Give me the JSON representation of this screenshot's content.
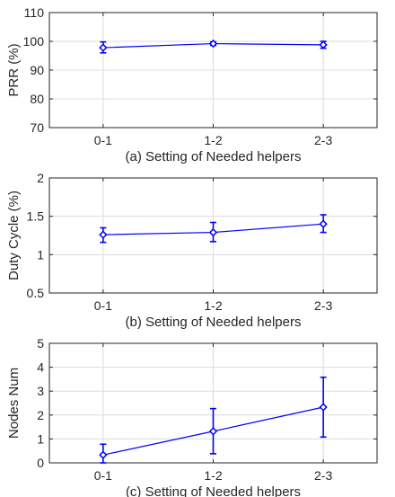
{
  "chart_data": [
    {
      "type": "line",
      "title": "",
      "xlabel": "(a) Setting of Needed helpers",
      "ylabel": "PRR (%)",
      "categories": [
        "0-1",
        "1-2",
        "2-3"
      ],
      "ylim": [
        70,
        110
      ],
      "yticks": [
        70,
        80,
        90,
        100,
        110
      ],
      "grid": true,
      "color": "#0000ff",
      "marker": "diamond",
      "series": [
        {
          "values": [
            97.8,
            99.2,
            98.8
          ],
          "error_low": [
            96.0,
            98.6,
            97.6
          ],
          "error_high": [
            99.8,
            99.8,
            100.0
          ]
        }
      ]
    },
    {
      "type": "line",
      "title": "",
      "xlabel": "(b) Setting of Needed helpers",
      "ylabel": "Duty Cycle (%)",
      "categories": [
        "0-1",
        "1-2",
        "2-3"
      ],
      "ylim": [
        0.5,
        2
      ],
      "yticks": [
        0.5,
        1,
        1.5,
        2
      ],
      "grid": true,
      "color": "#0000ff",
      "marker": "diamond",
      "series": [
        {
          "values": [
            1.26,
            1.29,
            1.4
          ],
          "error_low": [
            1.16,
            1.17,
            1.29
          ],
          "error_high": [
            1.35,
            1.42,
            1.52
          ]
        }
      ]
    },
    {
      "type": "line",
      "title": "",
      "xlabel": "(c) Setting of Needed helpers",
      "ylabel": "Nodes Num",
      "categories": [
        "0-1",
        "1-2",
        "2-3"
      ],
      "ylim": [
        0,
        5
      ],
      "yticks": [
        0,
        1,
        2,
        3,
        4,
        5
      ],
      "grid": true,
      "color": "#0000ff",
      "marker": "diamond",
      "series": [
        {
          "values": [
            0.33,
            1.32,
            2.33
          ],
          "error_low": [
            0.0,
            0.38,
            1.08
          ],
          "error_high": [
            0.78,
            2.27,
            3.58
          ]
        }
      ]
    }
  ]
}
